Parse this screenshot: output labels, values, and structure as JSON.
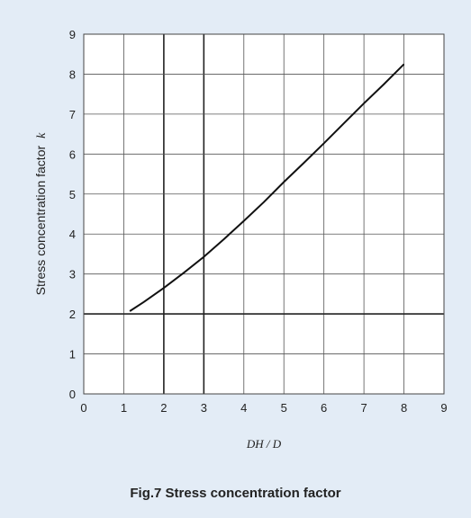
{
  "caption": "Fig.7  Stress concentration factor",
  "chart_data": {
    "type": "line",
    "title": "",
    "xlabel": "DH / D",
    "ylabel": "Stress concentration factor",
    "ylabel_symbol": "k",
    "xlim": [
      0,
      9
    ],
    "ylim": [
      0,
      9
    ],
    "xticks": [
      "0",
      "1",
      "2",
      "3",
      "4",
      "5",
      "6",
      "7",
      "8",
      "9"
    ],
    "yticks": [
      "0",
      "1",
      "2",
      "3",
      "4",
      "5",
      "6",
      "7",
      "8",
      "9"
    ],
    "grid": true,
    "series": [
      {
        "x": [
          1.15,
          1.5,
          2.0,
          2.5,
          3.0,
          3.5,
          4.0,
          4.5,
          5.0,
          5.5,
          6.0,
          6.5,
          7.0,
          7.5,
          8.0
        ],
        "y": [
          2.07,
          2.3,
          2.65,
          3.03,
          3.43,
          3.87,
          4.33,
          4.8,
          5.3,
          5.78,
          6.27,
          6.77,
          7.27,
          7.75,
          8.25
        ]
      }
    ]
  }
}
